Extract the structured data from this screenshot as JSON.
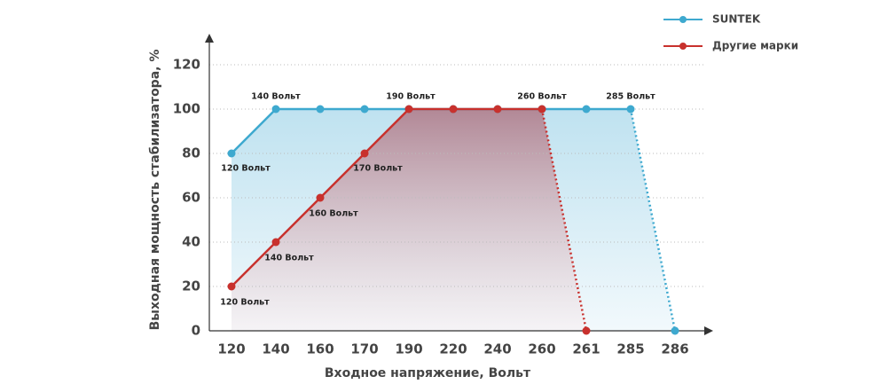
{
  "chart_data": {
    "type": "line",
    "y_label": "Выходная мощность стабилизатора, %",
    "x_label": "Входное напряжение, Вольт",
    "categories": [
      "120",
      "140",
      "160",
      "170",
      "190",
      "220",
      "240",
      "260",
      "261",
      "285",
      "286"
    ],
    "series": [
      {
        "name": "SUNTEK",
        "color": "#3ea9cf",
        "values": [
          80,
          100,
          100,
          100,
          100,
          100,
          100,
          100,
          100,
          100,
          0
        ]
      },
      {
        "name": "Другие марки",
        "color": "#c8312d",
        "values": [
          20,
          40,
          60,
          80,
          100,
          100,
          100,
          100,
          0,
          null,
          null
        ]
      }
    ],
    "ylim": [
      0,
      120
    ],
    "yticks": [
      0,
      20,
      40,
      60,
      80,
      100,
      120
    ],
    "grid": true,
    "annotations": [
      "140 Вольт",
      "190 Вольт",
      "260 Вольт",
      "285 Вольт",
      "120 Вольт",
      "170 Вольт",
      "160 Вольт",
      "140 Вольт",
      "120 Вольт"
    ]
  }
}
